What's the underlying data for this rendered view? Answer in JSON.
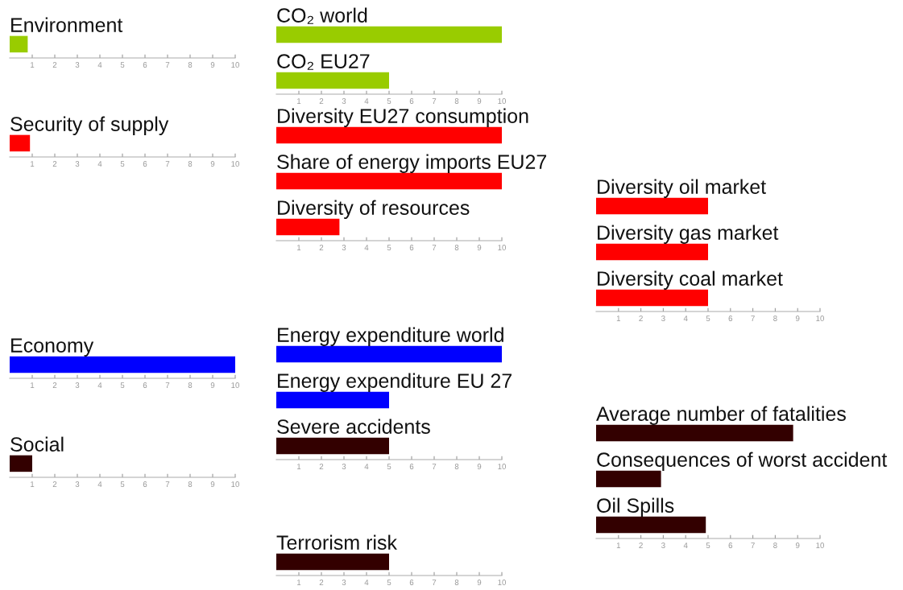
{
  "chart_data": [
    {
      "type": "bar",
      "orientation": "horizontal",
      "categories": [
        "Environment"
      ],
      "values": [
        0.8
      ],
      "color": "#99cc00",
      "xlim": [
        0,
        10
      ],
      "xticks": [
        1,
        2,
        3,
        4,
        5,
        6,
        7,
        8,
        9,
        10
      ]
    },
    {
      "type": "bar",
      "orientation": "horizontal",
      "categories": [
        "Security of supply"
      ],
      "values": [
        0.9
      ],
      "color": "#ff0000",
      "xlim": [
        0,
        10
      ],
      "xticks": [
        1,
        2,
        3,
        4,
        5,
        6,
        7,
        8,
        9,
        10
      ]
    },
    {
      "type": "bar",
      "orientation": "horizontal",
      "categories": [
        "Economy"
      ],
      "values": [
        10
      ],
      "color": "#0000ff",
      "xlim": [
        0,
        10
      ],
      "xticks": [
        1,
        2,
        3,
        4,
        5,
        6,
        7,
        8,
        9,
        10
      ]
    },
    {
      "type": "bar",
      "orientation": "horizontal",
      "categories": [
        "Social"
      ],
      "values": [
        1.0
      ],
      "color": "#330000",
      "xlim": [
        0,
        10
      ],
      "xticks": [
        1,
        2,
        3,
        4,
        5,
        6,
        7,
        8,
        9,
        10
      ]
    },
    {
      "type": "bar",
      "orientation": "horizontal",
      "categories": [
        "CO₂ world",
        "CO₂ EU27"
      ],
      "values": [
        10,
        5
      ],
      "color": "#99cc00",
      "xlim": [
        0,
        10
      ],
      "xticks": [
        1,
        2,
        3,
        4,
        5,
        6,
        7,
        8,
        9,
        10
      ]
    },
    {
      "type": "bar",
      "orientation": "horizontal",
      "categories": [
        "Diversity EU27 consumption",
        "Share of energy imports EU27",
        "Diversity of resources"
      ],
      "values": [
        10,
        10,
        2.8
      ],
      "color": "#ff0000",
      "xlim": [
        0,
        10
      ],
      "xticks": [
        1,
        2,
        3,
        4,
        5,
        6,
        7,
        8,
        9,
        10
      ]
    },
    {
      "type": "bar",
      "orientation": "horizontal",
      "categories": [
        "Diversity oil market",
        "Diversity gas market",
        "Diversity coal market"
      ],
      "values": [
        5,
        5,
        5
      ],
      "color": "#ff0000",
      "xlim": [
        0,
        10
      ],
      "xticks": [
        1,
        2,
        3,
        4,
        5,
        6,
        7,
        8,
        9,
        10
      ]
    },
    {
      "type": "bar",
      "orientation": "horizontal",
      "categories": [
        "Energy expenditure world",
        "Energy expenditure EU 27",
        "Severe accidents"
      ],
      "values": [
        10,
        5,
        5
      ],
      "colors": [
        "#0000ff",
        "#0000ff",
        "#330000"
      ],
      "xlim": [
        0,
        10
      ],
      "xticks": [
        1,
        2,
        3,
        4,
        5,
        6,
        7,
        8,
        9,
        10
      ]
    },
    {
      "type": "bar",
      "orientation": "horizontal",
      "categories": [
        "Terrorism risk"
      ],
      "values": [
        5
      ],
      "color": "#330000",
      "xlim": [
        0,
        10
      ],
      "xticks": [
        1,
        2,
        3,
        4,
        5,
        6,
        7,
        8,
        9,
        10
      ]
    },
    {
      "type": "bar",
      "orientation": "horizontal",
      "categories": [
        "Average number of fatalities",
        "Consequences of worst accident",
        "Oil Spills"
      ],
      "values": [
        8.8,
        2.9,
        4.9
      ],
      "color": "#330000",
      "xlim": [
        0,
        10
      ],
      "xticks": [
        1,
        2,
        3,
        4,
        5,
        6,
        7,
        8,
        9,
        10
      ]
    }
  ]
}
